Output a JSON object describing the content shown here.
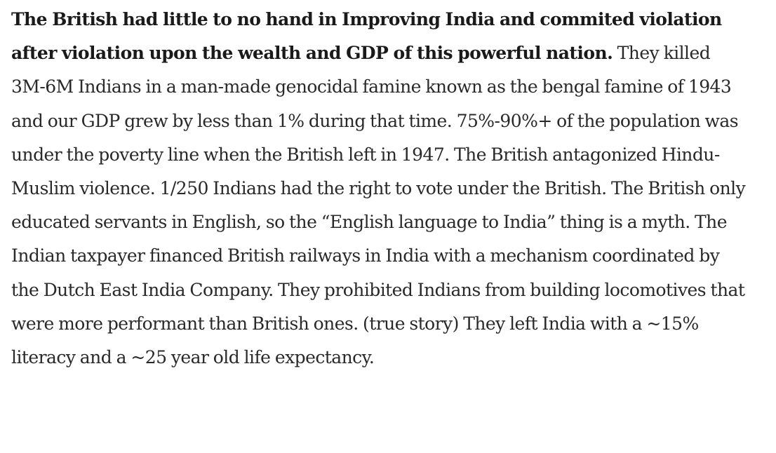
{
  "article": {
    "bold_lead": "The British had little to no hand in Improving India and commited violation after violation upon the wealth and GDP of this powerful nation.",
    "body": "They killed 3M-6M Indians in a man-made genocidal famine known as the bengal famine of 1943 and our GDP grew by less than 1% during that time. 75%-90%+ of the population was under the poverty line when the British left in 1947. The British antagonized Hindu-Muslim violence. 1/250 Indians had the right to vote under the British. The British only educated servants in English, so the “English language to India” thing is a myth. The Indian taxpayer financed British railways in India with a mechanism coordinated by the Dutch East India Company. They prohibited Indians from building locomotives that were more performant than British ones. (true story) They left India with a ~15% literacy and a ~25 year old life expectancy."
  },
  "colors": {
    "background": "#ffffff",
    "text": "#292929",
    "bold_text": "#1a1a1a"
  }
}
